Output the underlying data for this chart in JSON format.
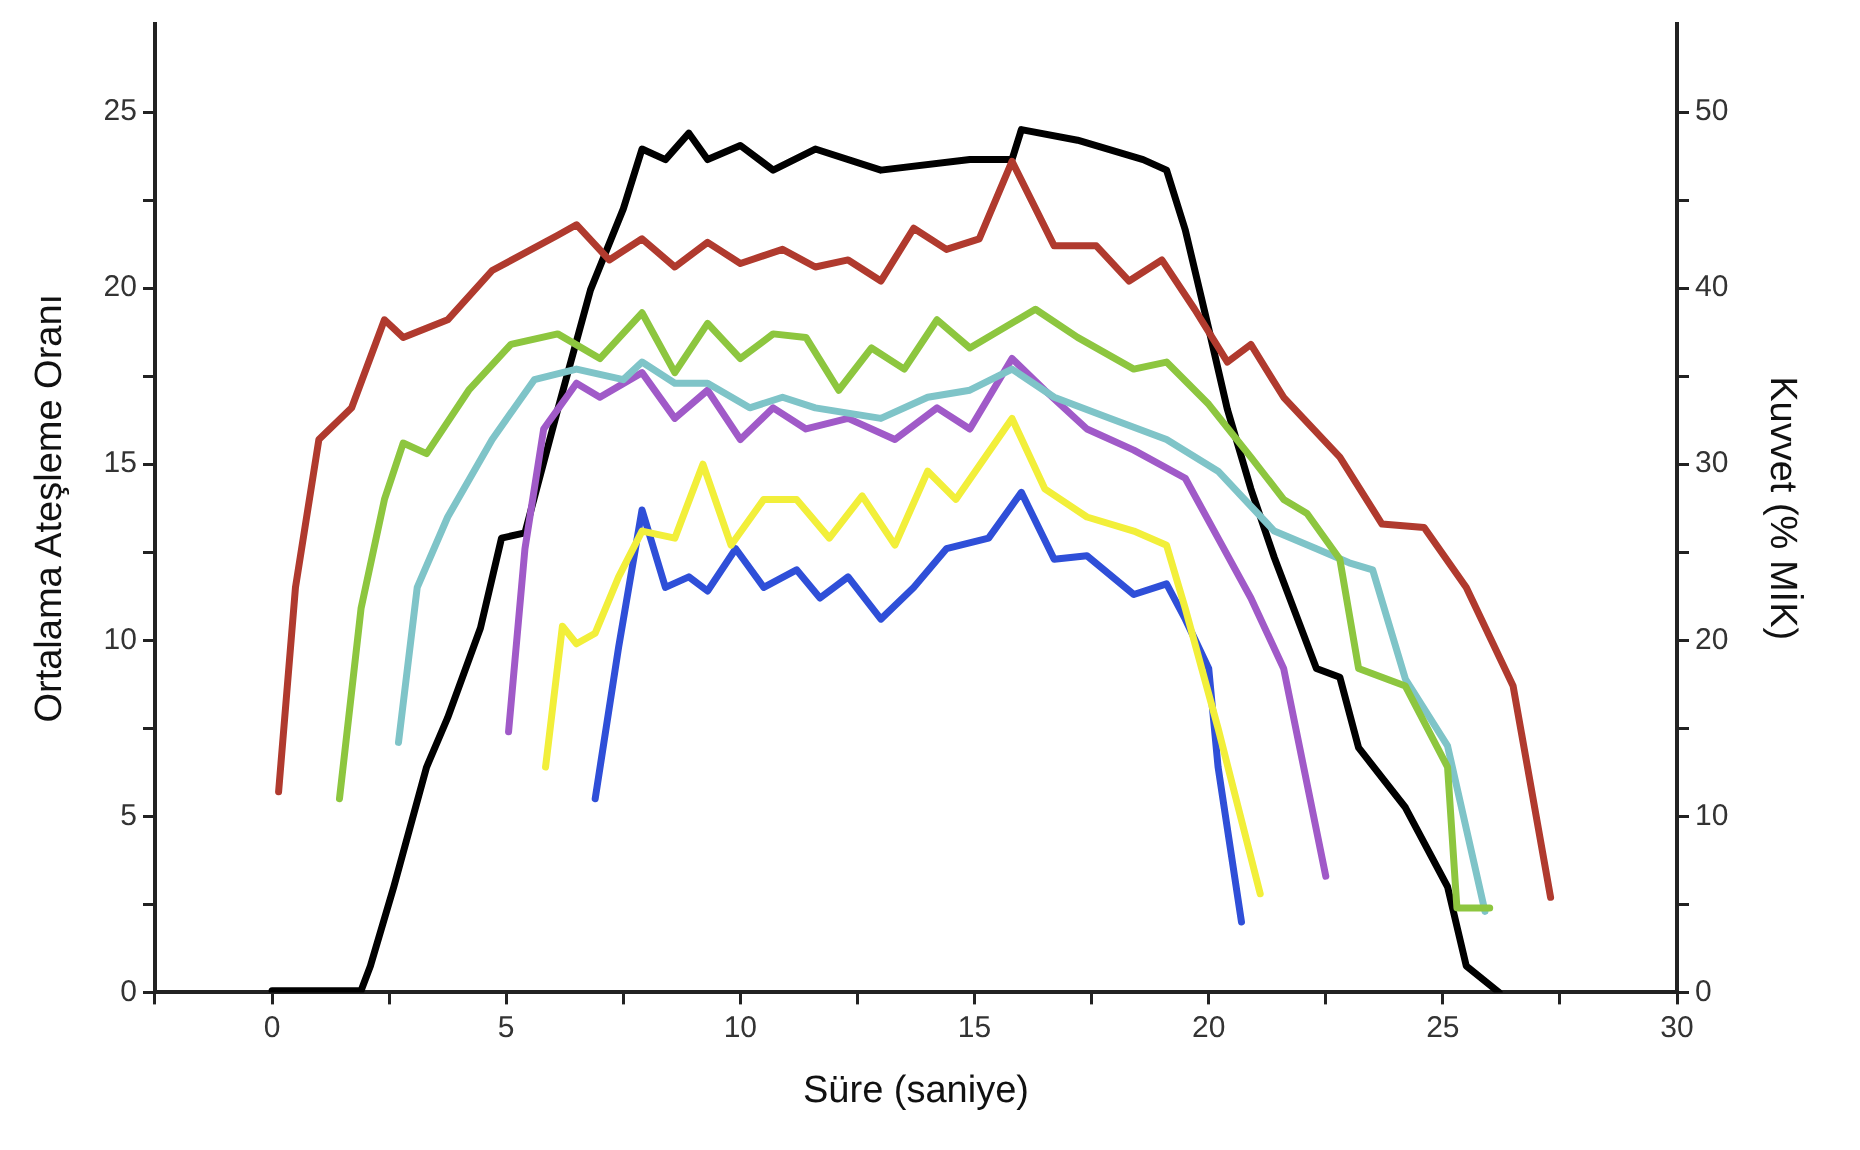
{
  "chart_data": {
    "type": "line",
    "xlabel": "Süre (saniye)",
    "ylabel": "Ortalama Ateşleme Oranı",
    "y2label": "Kuvvet (% MİK)",
    "xlim": [
      -2.5,
      30
    ],
    "xticks": [
      {
        "value": -2.5,
        "label": null
      },
      0,
      {
        "value": 2.5,
        "label": null
      },
      5,
      {
        "value": 7.5,
        "label": null
      },
      10,
      {
        "value": 12.5,
        "label": null
      },
      15,
      {
        "value": 17.5,
        "label": null
      },
      20,
      {
        "value": 22.5,
        "label": null
      },
      25,
      {
        "value": 27.5,
        "label": null
      },
      30
    ],
    "ylim": [
      0,
      27.5
    ],
    "yticks": [
      0,
      {
        "value": 2.5,
        "label": null
      },
      5,
      {
        "value": 7.5,
        "label": null
      },
      10,
      {
        "value": 12.5,
        "label": null
      },
      15,
      {
        "value": 17.5,
        "label": null
      },
      20,
      {
        "value": 22.5,
        "label": null
      },
      25
    ],
    "y2lim": [
      0,
      55
    ],
    "y2ticks": [
      0,
      {
        "value": 5,
        "label": null
      },
      10,
      {
        "value": 15,
        "label": null
      },
      20,
      {
        "value": 25,
        "label": null
      },
      30,
      {
        "value": 35,
        "label": null
      },
      40,
      {
        "value": 45,
        "label": null
      },
      50
    ],
    "grid": false,
    "legend": false,
    "marker": "none",
    "line_style": "solid",
    "series": [
      {
        "color": "#b03a2e",
        "x": [
          0.14,
          0.5,
          1,
          1.7,
          2.4,
          2.8,
          3.75,
          4.7,
          6.1,
          6.5,
          7.2,
          7.9,
          8.6,
          9.3,
          10,
          10.9,
          11.6,
          12.3,
          13,
          13.7,
          14.4,
          15.1,
          15.8,
          16.7,
          17.6,
          18.3,
          19,
          19.7,
          20.4,
          20.9,
          21.6,
          22.8,
          23.7,
          24.6,
          25.5,
          26.5,
          27.3
        ],
        "values": [
          5.7,
          11.5,
          15.7,
          16.6,
          19.1,
          18.6,
          19.1,
          20.5,
          21.5,
          21.8,
          20.8,
          21.4,
          20.6,
          21.3,
          20.7,
          21.1,
          20.6,
          20.8,
          20.2,
          21.7,
          21.1,
          21.4,
          23.6,
          21.2,
          21.2,
          20.2,
          20.8,
          19.4,
          17.9,
          18.4,
          16.9,
          15.2,
          13.3,
          13.2,
          11.5,
          8.7,
          2.7
        ]
      },
      {
        "color": "#8dc63f",
        "x": [
          1.44,
          1.9,
          2.4,
          2.8,
          3.3,
          4.2,
          5.1,
          6.1,
          7,
          7.9,
          8.6,
          9.3,
          10,
          10.7,
          11.4,
          12.1,
          12.8,
          13.5,
          14.2,
          14.9,
          16.3,
          17.2,
          18.4,
          19.1,
          20,
          20.9,
          21.6,
          22.1,
          22.8,
          23.2,
          24.2,
          25.1,
          25.3,
          26
        ],
        "values": [
          5.5,
          10.9,
          14,
          15.6,
          15.3,
          17.1,
          18.4,
          18.7,
          18,
          19.3,
          17.6,
          19,
          18,
          18.7,
          18.6,
          17.1,
          18.3,
          17.7,
          19.1,
          18.3,
          19.4,
          18.6,
          17.7,
          17.9,
          16.7,
          15.2,
          14,
          13.6,
          12.3,
          9.2,
          8.7,
          6.4,
          2.4,
          2.4
        ]
      },
      {
        "color": "#7fc4c8",
        "x": [
          2.7,
          3.1,
          3.75,
          4.7,
          5.6,
          6.5,
          7.5,
          7.9,
          8.6,
          9.3,
          10.2,
          10.9,
          11.6,
          13,
          14,
          14.9,
          15.8,
          16.7,
          17.9,
          19.1,
          20.2,
          21.4,
          22.3,
          23,
          23.5,
          24.2,
          25.1,
          25.9
        ],
        "values": [
          7.1,
          11.5,
          13.5,
          15.7,
          17.4,
          17.7,
          17.4,
          17.9,
          17.3,
          17.3,
          16.6,
          16.9,
          16.6,
          16.3,
          16.9,
          17.1,
          17.7,
          16.9,
          16.3,
          15.7,
          14.8,
          13.1,
          12.6,
          12.2,
          12,
          8.9,
          7,
          2.3
        ]
      },
      {
        "color": "#a05ac8",
        "x": [
          5.05,
          5.4,
          5.8,
          6.5,
          7,
          7.9,
          8.6,
          9.3,
          10,
          10.7,
          11.4,
          12.3,
          13.3,
          14.2,
          14.9,
          15.8,
          16.5,
          17.4,
          18.4,
          19.5,
          20.2,
          20.9,
          21.6,
          22.5
        ],
        "values": [
          7.4,
          12.6,
          16,
          17.3,
          16.9,
          17.6,
          16.3,
          17.1,
          15.7,
          16.6,
          16,
          16.3,
          15.7,
          16.6,
          16,
          18,
          17.1,
          16,
          15.4,
          14.6,
          12.9,
          11.2,
          9.2,
          3.3
        ]
      },
      {
        "color": "#f2ef3a",
        "x": [
          5.84,
          6.2,
          6.5,
          6.9,
          7.4,
          7.9,
          8.6,
          9.2,
          9.8,
          10.5,
          11.2,
          11.9,
          12.6,
          13.3,
          14,
          14.6,
          15.8,
          16.5,
          17.4,
          18.4,
          19.1,
          19.5,
          20.2,
          21.1
        ],
        "values": [
          6.4,
          10.4,
          9.9,
          10.2,
          11.8,
          13.1,
          12.9,
          15,
          12.7,
          14,
          14,
          12.9,
          14.1,
          12.7,
          14.8,
          14,
          16.3,
          14.3,
          13.5,
          13.1,
          12.7,
          10.9,
          7.5,
          2.8
        ]
      },
      {
        "color": "#2f4fd8",
        "x": [
          6.9,
          7.4,
          7.9,
          8.4,
          8.9,
          9.3,
          9.9,
          10.5,
          11.2,
          11.7,
          12.3,
          13,
          13.7,
          14.4,
          15.3,
          16,
          16.7,
          17.4,
          18.4,
          19.1,
          19.5,
          20,
          20.2,
          20.7
        ],
        "values": [
          5.5,
          9.8,
          13.7,
          11.5,
          11.8,
          11.4,
          12.6,
          11.5,
          12,
          11.2,
          11.8,
          10.6,
          11.5,
          12.6,
          12.9,
          14.2,
          12.3,
          12.4,
          11.3,
          11.6,
          10.6,
          9.2,
          6.4,
          2
        ]
      },
      {
        "color": "#000000",
        "axis": "y2",
        "x": [
          0,
          1.9,
          2.1,
          2.6,
          3.3,
          3.75,
          4.45,
          4.9,
          5.4,
          6.1,
          6.8,
          7.5,
          7.9,
          8.4,
          8.9,
          9.3,
          10,
          10.7,
          11.6,
          13,
          14.9,
          15.8,
          16,
          17.2,
          18.6,
          19.1,
          19.5,
          20,
          20.4,
          20.9,
          21.4,
          22.3,
          22.8,
          23.2,
          24.2,
          25.1,
          25.5,
          26.2
        ],
        "values": [
          0.1,
          0.1,
          1.5,
          6,
          12.8,
          15.6,
          20.7,
          25.8,
          26.1,
          33.1,
          39.9,
          44.5,
          47.9,
          47.3,
          48.8,
          47.3,
          48.1,
          46.7,
          47.9,
          46.7,
          47.3,
          47.3,
          49,
          48.4,
          47.3,
          46.7,
          43.3,
          37.7,
          33.1,
          28.6,
          24.7,
          18.4,
          17.9,
          13.9,
          10.5,
          6,
          1.5,
          0
        ]
      }
    ]
  }
}
